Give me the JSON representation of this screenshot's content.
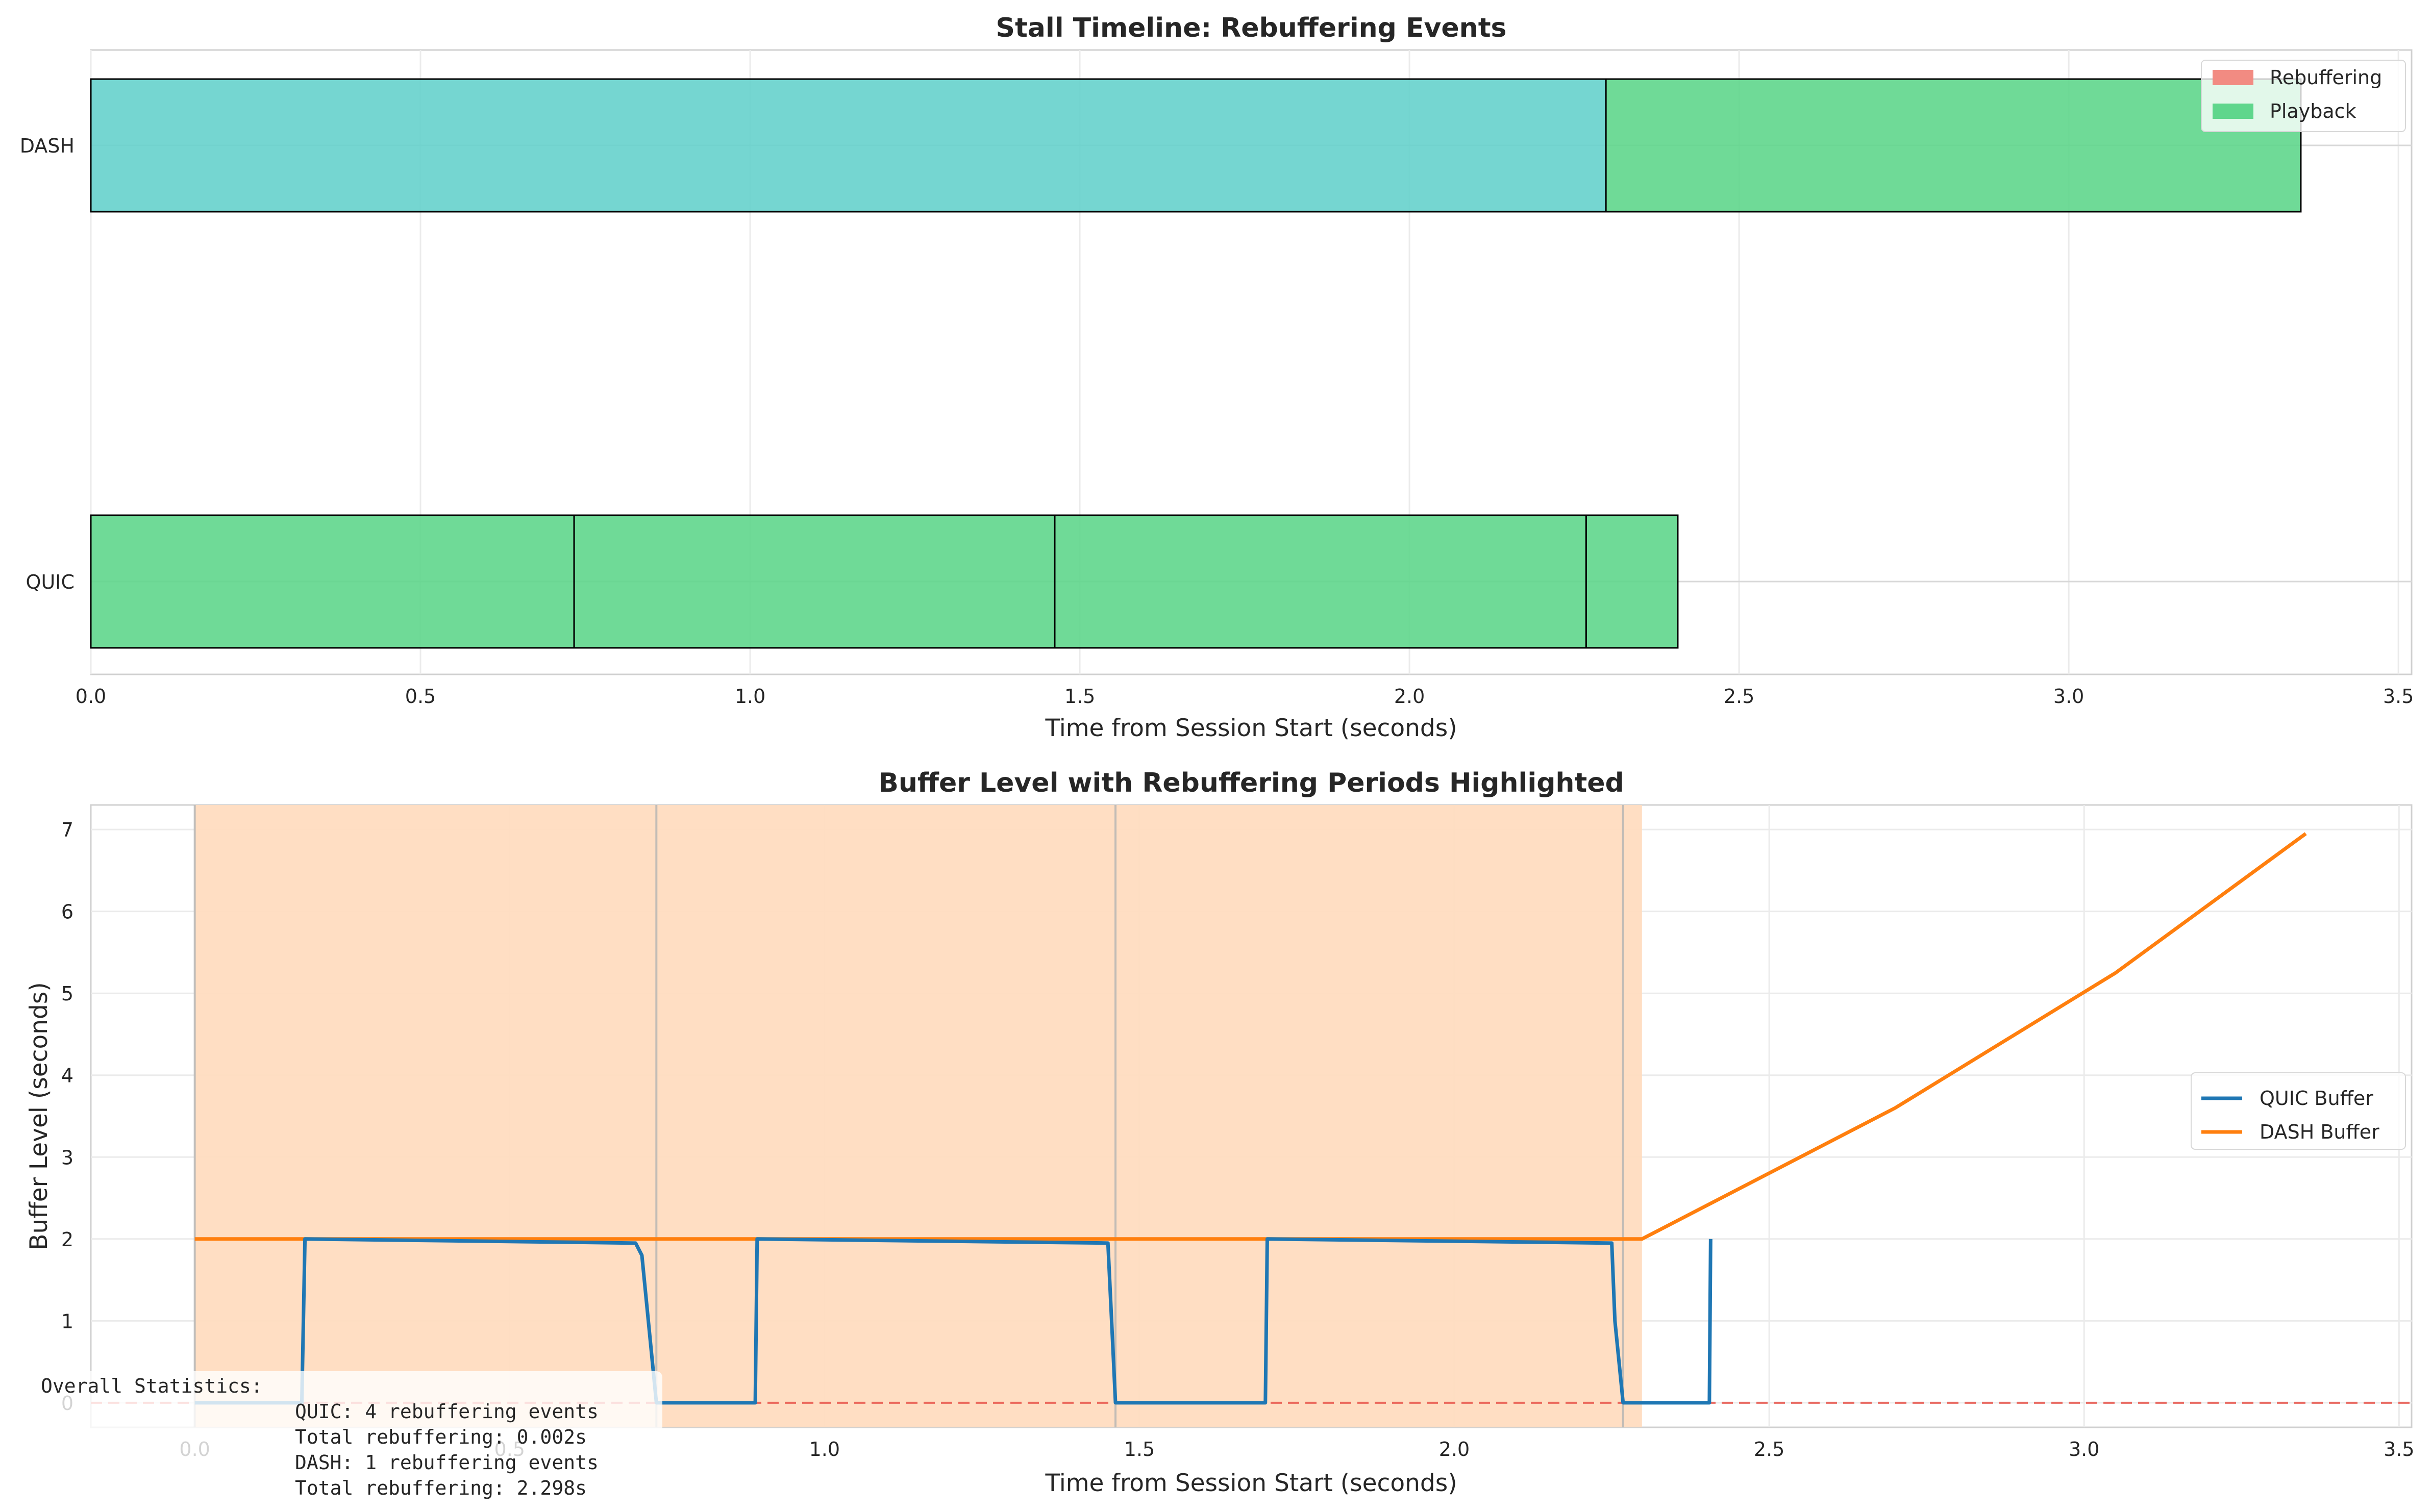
{
  "chart_data": [
    {
      "type": "bar",
      "orientation": "horizontal",
      "title": "Stall Timeline: Rebuffering Events",
      "xlabel": "Time from Session Start (seconds)",
      "ylabel": "",
      "xlim": [
        0,
        3.52
      ],
      "xticks": [
        0.0,
        0.5,
        1.0,
        1.5,
        2.0,
        2.5,
        3.0,
        3.5
      ],
      "xtick_labels": [
        "0.0",
        "0.5",
        "1.0",
        "1.5",
        "2.0",
        "2.5",
        "3.0",
        "3.5"
      ],
      "categories": [
        "DASH",
        "QUIC"
      ],
      "grid": true,
      "legend": {
        "placement": "top-right",
        "entries": [
          {
            "label": "Rebuffering",
            "color": "#f28b82"
          },
          {
            "label": "Playback",
            "color": "#5fd68c"
          }
        ]
      },
      "segments": [
        {
          "category": "DASH",
          "start": 0.0,
          "end": 2.298,
          "color": "#66d1cc"
        },
        {
          "category": "DASH",
          "start": 2.298,
          "end": 3.352,
          "color": "#5fd68c"
        },
        {
          "category": "QUIC",
          "start": 0.0,
          "end": 0.733,
          "color": "#5fd68c"
        },
        {
          "category": "QUIC",
          "start": 0.733,
          "end": 1.462,
          "color": "#5fd68c"
        },
        {
          "category": "QUIC",
          "start": 1.462,
          "end": 2.268,
          "color": "#5fd68c"
        },
        {
          "category": "QUIC",
          "start": 2.268,
          "end": 2.407,
          "color": "#5fd68c"
        }
      ]
    },
    {
      "type": "line",
      "title": "Buffer Level with Rebuffering Periods Highlighted",
      "xlabel": "Time from Session Start (seconds)",
      "ylabel": "Buffer Level (seconds)",
      "xlim": [
        -0.165,
        3.52
      ],
      "ylim": [
        -0.3,
        7.3
      ],
      "xticks": [
        0.0,
        0.5,
        1.0,
        1.5,
        2.0,
        2.5,
        3.0,
        3.5
      ],
      "xtick_labels": [
        "0.0",
        "0.5",
        "1.0",
        "1.5",
        "2.0",
        "2.5",
        "3.0",
        "3.5"
      ],
      "yticks": [
        0,
        1,
        2,
        3,
        4,
        5,
        6,
        7
      ],
      "ytick_labels": [
        "0",
        "1",
        "2",
        "3",
        "4",
        "5",
        "6",
        "7"
      ],
      "grid": true,
      "legend": {
        "placement": "center-right"
      },
      "series": [
        {
          "name": "QUIC Buffer",
          "color": "#1f77b4",
          "x": [
            0.0,
            0.17,
            0.175,
            0.7,
            0.71,
            0.733,
            0.89,
            0.893,
            1.45,
            1.462,
            1.7,
            1.703,
            2.25,
            2.255,
            2.268,
            2.405,
            2.407
          ],
          "y": [
            0.0,
            0.0,
            2.0,
            1.95,
            1.8,
            0.0,
            0.0,
            2.0,
            1.95,
            0.0,
            0.0,
            2.0,
            1.95,
            1.0,
            0.0,
            0.0,
            2.0
          ]
        },
        {
          "name": "DASH Buffer",
          "color": "#ff7f0e",
          "x": [
            0.0,
            2.298,
            2.7,
            3.05,
            3.352
          ],
          "y": [
            2.0,
            2.0,
            3.6,
            5.25,
            6.95
          ]
        }
      ],
      "rebuffering_spans": [
        {
          "start": 0.0,
          "end": 2.298,
          "color": "#ffdcc0"
        }
      ],
      "event_markers": [
        0.0,
        0.733,
        1.462,
        2.268
      ],
      "reference_line": {
        "y": 0,
        "color": "#e8534a",
        "style": "dashed"
      }
    }
  ],
  "stats": {
    "heading": "Overall Statistics:",
    "lines": [
      "QUIC: 4 rebuffering events",
      "Total rebuffering: 0.002s",
      "DASH: 1 rebuffering events",
      "Total rebuffering: 2.298s"
    ]
  }
}
